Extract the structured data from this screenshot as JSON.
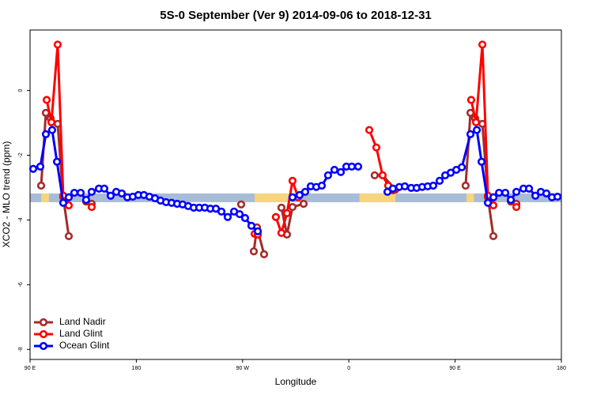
{
  "chart_data": {
    "type": "line",
    "title": "5S-0 September (Ver 9)   2014-09-06 to 2018-12-31",
    "x_label": "Longitude",
    "y_label": "XCO2 - MLO trend (ppm)",
    "xlim": [
      90,
      540
    ],
    "ylim": [
      -8.31,
      1.87
    ],
    "xticks": [
      {
        "value": 90,
        "label": "90 E"
      },
      {
        "value": 180,
        "label": "180"
      },
      {
        "value": 270,
        "label": "90 W"
      },
      {
        "value": 360,
        "label": "0"
      },
      {
        "value": 450,
        "label": "90 E"
      },
      {
        "value": 540,
        "label": "180"
      }
    ],
    "yticks": [
      0,
      -2,
      -4,
      -6,
      -8
    ],
    "band": {
      "y": [
        -3.45,
        -3.18
      ],
      "color": "#a8bcd8",
      "highlight_color": "#f6d57c",
      "highlight": [
        [
          99.4,
          106
        ],
        [
          280.2,
          311
        ],
        [
          369,
          399.4
        ],
        [
          459.6,
          466
        ]
      ]
    },
    "legend": "bottom-left",
    "series": [
      {
        "name": "Land Nadir",
        "color": "#a52a2a",
        "x": [
          99.4,
          103.4,
          107.4,
          113.4,
          118.1,
          122.8,
          null,
          137.5,
          142.2,
          null,
          268.8,
          null,
          279.5,
          282.2,
          288.2,
          null,
          302.9,
          307.6,
          312.3,
          321.7,
          null,
          381.9,
          388.6,
          399.4,
          null,
          458.9,
          463,
          467,
          473.1,
          477.8,
          482.4,
          null,
          497.2,
          501.9
        ],
        "values": [
          -2.94,
          -0.69,
          -0.86,
          -1.03,
          -3.3,
          -4.5,
          null,
          -3.43,
          -3.5,
          null,
          -3.52,
          null,
          -4.97,
          -4.23,
          -5.06,
          null,
          -3.62,
          -4.45,
          -3.6,
          -3.5,
          null,
          -2.62,
          -2.62,
          -3.06,
          null,
          -2.94,
          -0.69,
          -0.86,
          -1.03,
          -3.3,
          -4.5,
          null,
          -3.43,
          -3.5
        ]
      },
      {
        "name": "Land Glint",
        "color": "#ff0000",
        "x": [
          104.1,
          108.1,
          113.4,
          118.1,
          122.8,
          null,
          142.2,
          null,
          280.2,
          282.9,
          null,
          298.2,
          302.9,
          307.6,
          312.3,
          317,
          null,
          377.3,
          383.3,
          388.6,
          393.3,
          397.3,
          null,
          463.6,
          467.7,
          473.1,
          477.8,
          482.4,
          null,
          501.9
        ],
        "values": [
          -0.29,
          -0.98,
          1.42,
          -3.25,
          -3.55,
          null,
          -3.6,
          null,
          -4.43,
          -4.45,
          null,
          -3.91,
          -4.4,
          -3.79,
          -2.79,
          -3.3,
          null,
          -1.22,
          -1.76,
          -2.62,
          -2.94,
          -3.08,
          null,
          -0.29,
          -0.98,
          1.42,
          -3.25,
          -3.55,
          null,
          -3.6
        ]
      },
      {
        "name": "Ocean Glint",
        "color": "#0000ff",
        "x": [
          92.7,
          98.7,
          103.4,
          108.7,
          112.8,
          118.1,
          122.8,
          127.5,
          132.9,
          137.5,
          142.2,
          148.3,
          152.9,
          158.3,
          163,
          167.7,
          172.4,
          177,
          181.7,
          186.4,
          191.1,
          195.8,
          200.5,
          205.2,
          209.9,
          214.6,
          219.2,
          223.9,
          228.6,
          233.3,
          238,
          242.7,
          247.4,
          252.1,
          257.4,
          262.8,
          267.5,
          272.1,
          277.5,
          282.9,
          null,
          312.3,
          318.3,
          323,
          327.7,
          332.4,
          337.1,
          342.4,
          347.8,
          353.2,
          357.9,
          362.5,
          367.9,
          null,
          392.7,
          397.3,
          402.7,
          407.4,
          412.8,
          417.4,
          422.1,
          426.8,
          431.5,
          436.9,
          441.6,
          446.3,
          451,
          455.7,
          463,
          468.4,
          472.4,
          477.8,
          482.5,
          487.2,
          492.5,
          497.2,
          501.9,
          507.9,
          512.6,
          518,
          522.6,
          527.3,
          532,
          536.7
        ],
        "values": [
          -2.42,
          -2.35,
          -1.35,
          -1.22,
          -2.2,
          -3.47,
          -3.3,
          -3.16,
          -3.16,
          -3.38,
          -3.13,
          -3.03,
          -3.03,
          -3.25,
          -3.13,
          -3.18,
          -3.3,
          -3.28,
          -3.23,
          -3.23,
          -3.28,
          -3.33,
          -3.4,
          -3.45,
          -3.47,
          -3.5,
          -3.52,
          -3.57,
          -3.62,
          -3.62,
          -3.62,
          -3.65,
          -3.65,
          -3.74,
          -3.91,
          -3.74,
          -3.82,
          -3.94,
          -4.18,
          -4.35,
          null,
          -3.3,
          -3.23,
          -3.13,
          -2.96,
          -2.98,
          -2.94,
          -2.62,
          -2.45,
          -2.52,
          -2.35,
          -2.35,
          -2.35,
          null,
          -3.13,
          -3.03,
          -2.98,
          -2.96,
          -3.01,
          -3.01,
          -2.98,
          -2.96,
          -2.94,
          -2.79,
          -2.62,
          -2.54,
          -2.45,
          -2.37,
          -1.35,
          -1.22,
          -2.2,
          -3.47,
          -3.3,
          -3.16,
          -3.16,
          -3.38,
          -3.13,
          -3.03,
          -3.03,
          -3.25,
          -3.13,
          -3.18,
          -3.3,
          -3.28
        ]
      }
    ]
  }
}
